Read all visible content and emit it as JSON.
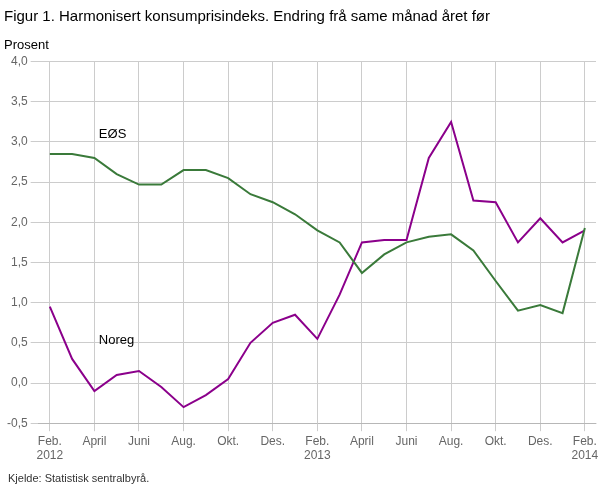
{
  "chart_data": {
    "type": "line",
    "title": "Figur 1. Harmonisert konsumprisindeks. Endring frå same månad året før",
    "ylabel": "Prosent",
    "source": "Kjelde: Statistisk sentralbyrå.",
    "categories": [
      "Feb.\n2012",
      null,
      "April",
      null,
      "Juni",
      null,
      "Aug.",
      null,
      "Okt.",
      null,
      "Des.",
      null,
      "Feb.\n2013",
      null,
      "April",
      null,
      "Juni",
      null,
      "Aug.",
      null,
      "Okt.",
      null,
      "Des.",
      null,
      "Feb.\n2014"
    ],
    "series": [
      {
        "color": "#3a7a3a",
        "values": [
          2.85,
          2.85,
          2.8,
          2.6,
          2.47,
          2.47,
          2.65,
          2.65,
          2.55,
          2.35,
          2.25,
          2.1,
          1.9,
          1.75,
          1.37,
          1.6,
          1.75,
          1.82,
          1.85,
          1.65,
          1.27,
          0.9,
          0.97,
          0.87,
          1.93
        ]
      },
      {
        "color": "#8b008b",
        "values": [
          0.95,
          0.3,
          -0.1,
          0.1,
          0.15,
          -0.05,
          -0.3,
          -0.15,
          0.05,
          0.5,
          0.75,
          0.85,
          0.55,
          1.1,
          1.75,
          1.78,
          1.78,
          2.8,
          3.25,
          2.27,
          2.25,
          1.75,
          2.05,
          1.75,
          1.9
        ]
      }
    ],
    "annotations": [
      {
        "text": "EØS",
        "x": 2.2,
        "y": 3.05
      },
      {
        "text": "Noreg",
        "x": 2.2,
        "y": 0.48
      }
    ],
    "ylim": [
      -0.5,
      4.0
    ],
    "yticks": [
      {
        "value": -0.5,
        "label": "-0,5"
      },
      {
        "value": 0.0,
        "label": "0,0"
      },
      {
        "value": 0.5,
        "label": "0,5"
      },
      {
        "value": 1.0,
        "label": "1,0"
      },
      {
        "value": 1.5,
        "label": "1,5"
      },
      {
        "value": 2.0,
        "label": "2,0"
      },
      {
        "value": 2.5,
        "label": "2,5"
      },
      {
        "value": 3.0,
        "label": "3,0"
      },
      {
        "value": 3.5,
        "label": "3,5"
      },
      {
        "value": 4.0,
        "label": "4,0"
      }
    ],
    "grid": true
  }
}
